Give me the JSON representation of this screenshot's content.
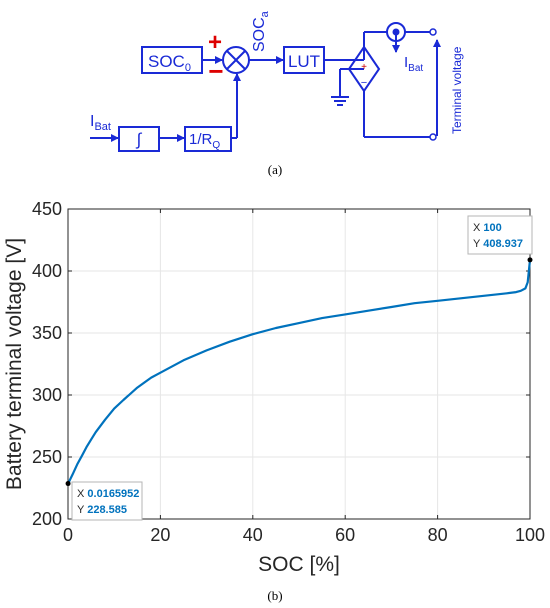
{
  "diagram": {
    "soc0": {
      "main": "SOC",
      "sub": "0"
    },
    "plus_sign": "+",
    "minus_sign": "−",
    "soca": {
      "main": "SOC",
      "sub": "a"
    },
    "lut": "LUT",
    "ibat_in": {
      "main": "I",
      "sub": "Bat"
    },
    "integrator": "∫",
    "gain": {
      "main": "1/R",
      "sub": "Q"
    },
    "ibat_out": {
      "main": "I",
      "sub": "Bat"
    },
    "source_plus": "+",
    "source_minus": "−",
    "terminal_voltage": "Terminal voltage",
    "caption": "(a)",
    "color": "#1a2ad6"
  },
  "chart_data": {
    "type": "line",
    "title": "",
    "xlabel": "SOC [%]",
    "ylabel": "Battery terminal voltage [V]",
    "xlim": [
      0,
      100
    ],
    "ylim": [
      200,
      450
    ],
    "xticks": [
      0,
      20,
      40,
      60,
      80,
      100
    ],
    "yticks": [
      200,
      250,
      300,
      350,
      400,
      450
    ],
    "grid": true,
    "series": [
      {
        "color": "#0072bd",
        "x": [
          0.0166,
          1,
          2,
          3,
          4,
          5,
          6,
          8,
          10,
          12,
          15,
          18,
          20,
          25,
          30,
          35,
          40,
          45,
          50,
          55,
          60,
          65,
          70,
          75,
          80,
          85,
          90,
          95,
          97,
          98,
          99,
          99.5,
          100
        ],
        "y": [
          228.585,
          236,
          244,
          251,
          258,
          264,
          270,
          280,
          289,
          296,
          306,
          314,
          318,
          328,
          336,
          343,
          349,
          354,
          358,
          362,
          365,
          368,
          371,
          374,
          376,
          378,
          380,
          382,
          383,
          384,
          386,
          391,
          408.937
        ]
      }
    ],
    "datatips": [
      {
        "x_label": "X",
        "x_value": "0.0165952",
        "y_label": "Y",
        "y_value": "228.585",
        "x": 0.0165952,
        "y": 228.585
      },
      {
        "x_label": "X",
        "x_value": "100",
        "y_label": "Y",
        "y_value": "408.937",
        "x": 100,
        "y": 408.937
      }
    ],
    "caption": "(b)"
  }
}
